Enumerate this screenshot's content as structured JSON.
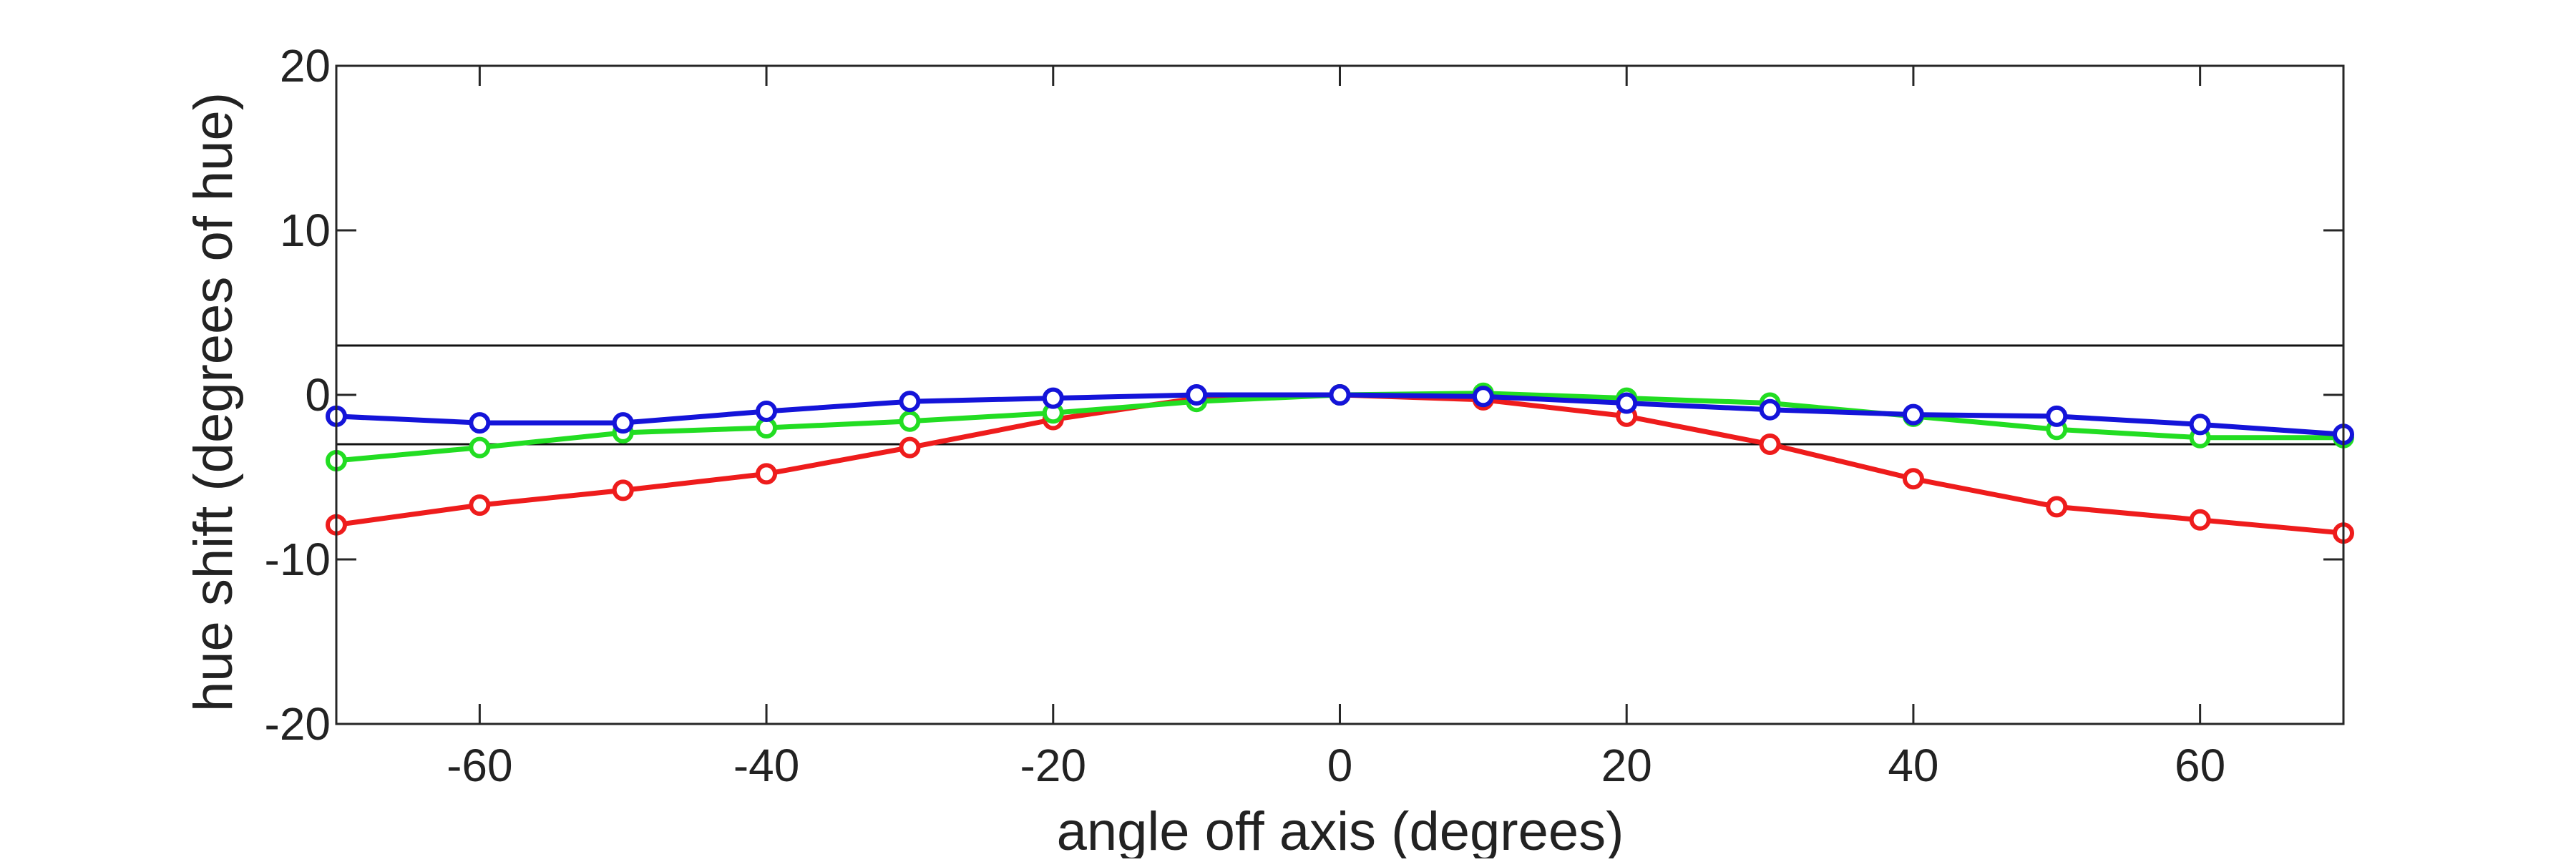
{
  "chart_data": {
    "type": "line",
    "title": "",
    "xlabel": "angle off axis (degrees)",
    "ylabel": "hue shift (degrees of hue)",
    "xlim": [
      -70,
      70
    ],
    "ylim": [
      -20,
      20
    ],
    "x_ticks": [
      -60,
      -40,
      -20,
      0,
      20,
      40,
      60
    ],
    "y_ticks": [
      -20,
      -10,
      0,
      10,
      20
    ],
    "x": [
      -70,
      -60,
      -50,
      -40,
      -30,
      -20,
      -10,
      0,
      10,
      20,
      30,
      40,
      50,
      60,
      70
    ],
    "reference_lines": [
      3,
      -3
    ],
    "grid": false,
    "series": [
      {
        "color": "#ee1c1c",
        "values": [
          -7.9,
          -6.7,
          -5.8,
          -4.8,
          -3.2,
          -1.5,
          -0.2,
          0.0,
          -0.3,
          -1.3,
          -3.0,
          -5.1,
          -6.8,
          -7.6,
          -8.4
        ]
      },
      {
        "color": "#22dd22",
        "values": [
          -4.0,
          -3.2,
          -2.3,
          -2.0,
          -1.6,
          -1.1,
          -0.4,
          0.0,
          0.1,
          -0.2,
          -0.5,
          -1.3,
          -2.1,
          -2.6,
          -2.6
        ]
      },
      {
        "color": "#1414d9",
        "values": [
          -1.3,
          -1.7,
          -1.7,
          -1.0,
          -0.4,
          -0.2,
          0.0,
          0.0,
          -0.1,
          -0.5,
          -0.9,
          -1.2,
          -1.3,
          -1.8,
          -2.4
        ]
      }
    ]
  }
}
